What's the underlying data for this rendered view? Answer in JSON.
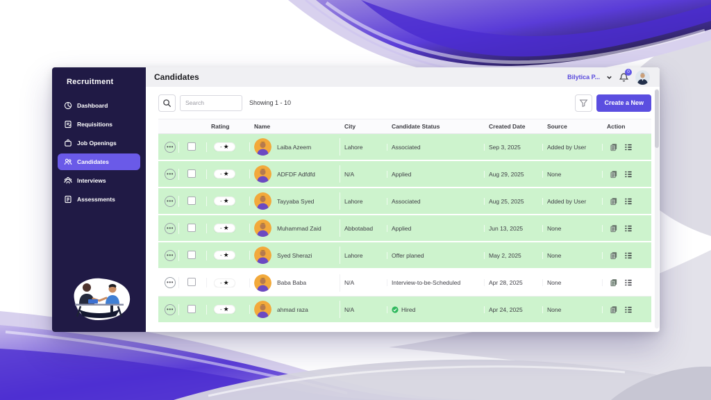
{
  "sidebar": {
    "brand": "Recruitment",
    "items": [
      {
        "label": "Dashboard",
        "icon": "dashboard-icon",
        "active": false
      },
      {
        "label": "Requisitions",
        "icon": "requisitions-icon",
        "active": false
      },
      {
        "label": "Job Openings",
        "icon": "job-openings-icon",
        "active": false
      },
      {
        "label": "Candidates",
        "icon": "candidates-icon",
        "active": true
      },
      {
        "label": "Interviews",
        "icon": "interviews-icon",
        "active": false
      },
      {
        "label": "Assessments",
        "icon": "assessments-icon",
        "active": false
      }
    ]
  },
  "header": {
    "title": "Candidates",
    "user_menu_label": "Bilytica P...",
    "notification_count": "0"
  },
  "toolbar": {
    "search_placeholder": "Search",
    "showing_text": "Showing 1 - 10",
    "create_button_label": "Create a New"
  },
  "table": {
    "columns": [
      "",
      "",
      "Rating",
      "Name",
      "City",
      "Candidate Status",
      "Created Date",
      "Source",
      "Action"
    ],
    "rating_display": "-",
    "rating_star": "★",
    "row_menu_glyph": "•••",
    "rows": [
      {
        "name": "Laiba Azeem",
        "city": "Lahore",
        "status": "Associated",
        "hired": false,
        "created": "Sep 3, 2025",
        "source": "Added by User",
        "highlighted": true
      },
      {
        "name": "ADFDF Adfdfd",
        "city": "N/A",
        "status": "Applied",
        "hired": false,
        "created": "Aug 29, 2025",
        "source": "None",
        "highlighted": true
      },
      {
        "name": "Tayyaba Syed",
        "city": "Lahore",
        "status": "Associated",
        "hired": false,
        "created": "Aug 25, 2025",
        "source": "Added by User",
        "highlighted": true
      },
      {
        "name": "Muhammad Zaid",
        "city": "Abbotabad",
        "status": "Applied",
        "hired": false,
        "created": "Jun 13, 2025",
        "source": "None",
        "highlighted": true
      },
      {
        "name": "Syed Sherazi",
        "city": "Lahore",
        "status": "Offer planed",
        "hired": false,
        "created": "May 2, 2025",
        "source": "None",
        "highlighted": true
      },
      {
        "name": "Baba Baba",
        "city": "N/A",
        "status": "Interview-to-be-Scheduled",
        "hired": false,
        "created": "Apr 28, 2025",
        "source": "None",
        "highlighted": false
      },
      {
        "name": "ahmad raza",
        "city": "N/A",
        "status": "Hired",
        "hired": true,
        "created": "Apr 24, 2025",
        "source": "None",
        "highlighted": true
      }
    ]
  },
  "colors": {
    "accent": "#5b4ee0",
    "sidebar_bg": "#201a45",
    "active_item": "#6a5ae8",
    "row_highlight_green": "#cdf3cd",
    "badge_purple": "#6157e6",
    "hired_green": "#2eb85c"
  }
}
